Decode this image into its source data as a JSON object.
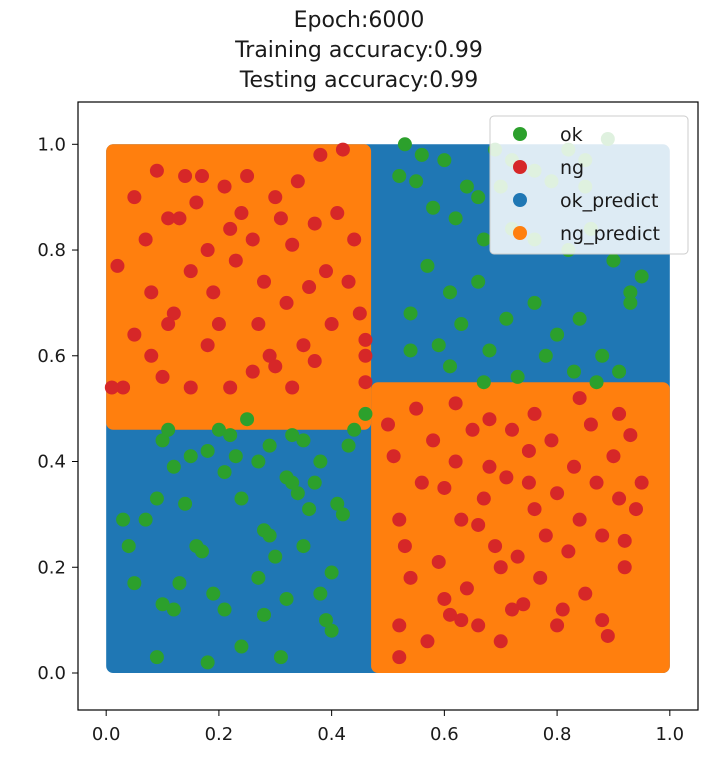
{
  "chart_data": {
    "type": "scatter",
    "title_lines": [
      "Epoch:6000",
      "Training accuracy:0.99",
      "Testing accuracy:0.99"
    ],
    "xlabel": "",
    "ylabel": "",
    "xlim": [
      -0.05,
      1.05
    ],
    "ylim": [
      -0.07,
      1.08
    ],
    "xticks": [
      0.0,
      0.2,
      0.4,
      0.6,
      0.8,
      1.0
    ],
    "yticks": [
      0.0,
      0.2,
      0.4,
      0.6,
      0.8,
      1.0
    ],
    "xtick_labels": [
      "0.0",
      "0.2",
      "0.4",
      "0.6",
      "0.8",
      "1.0"
    ],
    "ytick_labels": [
      "0.0",
      "0.2",
      "0.4",
      "0.6",
      "0.8",
      "1.0"
    ],
    "grid": false,
    "legend_position": "top-right",
    "regions": [
      {
        "name": "ok_predict",
        "color": "#1f77b4",
        "x": [
          0.0,
          1.0
        ],
        "y": [
          0.0,
          1.0
        ]
      },
      {
        "name": "ng_predict",
        "color": "#ff7f0e",
        "x": [
          0.0,
          0.47
        ],
        "y": [
          0.46,
          1.0
        ]
      },
      {
        "name": "ng_predict",
        "color": "#ff7f0e",
        "x": [
          0.47,
          1.0
        ],
        "y": [
          0.0,
          0.55
        ]
      }
    ],
    "series": [
      {
        "name": "ok",
        "color": "#2ca02c",
        "points": [
          [
            0.53,
            1.0
          ],
          [
            0.52,
            0.94
          ],
          [
            0.56,
            0.98
          ],
          [
            0.6,
            0.97
          ],
          [
            0.64,
            0.92
          ],
          [
            0.66,
            0.9
          ],
          [
            0.69,
            0.99
          ],
          [
            0.72,
            0.97
          ],
          [
            0.76,
            0.95
          ],
          [
            0.79,
            0.93
          ],
          [
            0.82,
            0.99
          ],
          [
            0.85,
            0.97
          ],
          [
            0.89,
            1.01
          ],
          [
            0.55,
            0.93
          ],
          [
            0.58,
            0.88
          ],
          [
            0.62,
            0.86
          ],
          [
            0.67,
            0.82
          ],
          [
            0.72,
            0.84
          ],
          [
            0.76,
            0.82
          ],
          [
            0.82,
            0.8
          ],
          [
            0.86,
            0.84
          ],
          [
            0.9,
            0.78
          ],
          [
            0.93,
            0.72
          ],
          [
            0.57,
            0.77
          ],
          [
            0.61,
            0.72
          ],
          [
            0.66,
            0.74
          ],
          [
            0.71,
            0.67
          ],
          [
            0.76,
            0.7
          ],
          [
            0.8,
            0.64
          ],
          [
            0.84,
            0.67
          ],
          [
            0.88,
            0.6
          ],
          [
            0.91,
            0.57
          ],
          [
            0.54,
            0.68
          ],
          [
            0.59,
            0.62
          ],
          [
            0.63,
            0.66
          ],
          [
            0.68,
            0.61
          ],
          [
            0.73,
            0.56
          ],
          [
            0.78,
            0.6
          ],
          [
            0.83,
            0.57
          ],
          [
            0.87,
            0.55
          ],
          [
            0.54,
            0.61
          ],
          [
            0.61,
            0.58
          ],
          [
            0.67,
            0.55
          ],
          [
            0.93,
            0.7
          ],
          [
            0.95,
            0.75
          ],
          [
            0.85,
            0.92
          ],
          [
            0.7,
            0.92
          ],
          [
            0.46,
            0.49
          ],
          [
            0.03,
            0.29
          ],
          [
            0.04,
            0.24
          ],
          [
            0.05,
            0.17
          ],
          [
            0.07,
            0.29
          ],
          [
            0.09,
            0.33
          ],
          [
            0.1,
            0.44
          ],
          [
            0.11,
            0.46
          ],
          [
            0.12,
            0.39
          ],
          [
            0.14,
            0.32
          ],
          [
            0.15,
            0.41
          ],
          [
            0.17,
            0.23
          ],
          [
            0.18,
            0.42
          ],
          [
            0.2,
            0.46
          ],
          [
            0.21,
            0.38
          ],
          [
            0.22,
            0.45
          ],
          [
            0.23,
            0.41
          ],
          [
            0.24,
            0.33
          ],
          [
            0.25,
            0.48
          ],
          [
            0.27,
            0.4
          ],
          [
            0.28,
            0.27
          ],
          [
            0.29,
            0.26
          ],
          [
            0.3,
            0.22
          ],
          [
            0.32,
            0.37
          ],
          [
            0.33,
            0.45
          ],
          [
            0.34,
            0.34
          ],
          [
            0.35,
            0.44
          ],
          [
            0.36,
            0.31
          ],
          [
            0.37,
            0.36
          ],
          [
            0.38,
            0.4
          ],
          [
            0.4,
            0.19
          ],
          [
            0.41,
            0.32
          ],
          [
            0.42,
            0.3
          ],
          [
            0.43,
            0.43
          ],
          [
            0.44,
            0.46
          ],
          [
            0.1,
            0.13
          ],
          [
            0.12,
            0.12
          ],
          [
            0.16,
            0.24
          ],
          [
            0.19,
            0.15
          ],
          [
            0.21,
            0.12
          ],
          [
            0.24,
            0.05
          ],
          [
            0.27,
            0.18
          ],
          [
            0.28,
            0.11
          ],
          [
            0.32,
            0.14
          ],
          [
            0.35,
            0.24
          ],
          [
            0.39,
            0.1
          ],
          [
            0.4,
            0.08
          ],
          [
            0.13,
            0.17
          ],
          [
            0.09,
            0.03
          ],
          [
            0.18,
            0.02
          ],
          [
            0.31,
            0.03
          ],
          [
            0.38,
            0.15
          ],
          [
            0.33,
            0.36
          ],
          [
            0.29,
            0.43
          ]
        ]
      },
      {
        "name": "ng",
        "color": "#d62728",
        "points": [
          [
            0.02,
            0.77
          ],
          [
            0.05,
            0.9
          ],
          [
            0.07,
            0.82
          ],
          [
            0.08,
            0.72
          ],
          [
            0.09,
            0.95
          ],
          [
            0.11,
            0.86
          ],
          [
            0.12,
            0.68
          ],
          [
            0.13,
            0.86
          ],
          [
            0.14,
            0.94
          ],
          [
            0.15,
            0.76
          ],
          [
            0.16,
            0.89
          ],
          [
            0.17,
            0.94
          ],
          [
            0.18,
            0.8
          ],
          [
            0.19,
            0.72
          ],
          [
            0.2,
            0.66
          ],
          [
            0.21,
            0.92
          ],
          [
            0.22,
            0.84
          ],
          [
            0.23,
            0.78
          ],
          [
            0.24,
            0.87
          ],
          [
            0.25,
            0.94
          ],
          [
            0.26,
            0.82
          ],
          [
            0.27,
            0.66
          ],
          [
            0.28,
            0.74
          ],
          [
            0.29,
            0.6
          ],
          [
            0.3,
            0.9
          ],
          [
            0.31,
            0.86
          ],
          [
            0.32,
            0.7
          ],
          [
            0.33,
            0.81
          ],
          [
            0.34,
            0.93
          ],
          [
            0.35,
            0.62
          ],
          [
            0.36,
            0.73
          ],
          [
            0.37,
            0.85
          ],
          [
            0.38,
            0.98
          ],
          [
            0.39,
            0.76
          ],
          [
            0.4,
            0.66
          ],
          [
            0.41,
            0.87
          ],
          [
            0.42,
            0.99
          ],
          [
            0.43,
            0.74
          ],
          [
            0.44,
            0.82
          ],
          [
            0.45,
            0.68
          ],
          [
            0.46,
            0.63
          ],
          [
            0.46,
            0.6
          ],
          [
            0.46,
            0.55
          ],
          [
            0.05,
            0.64
          ],
          [
            0.08,
            0.6
          ],
          [
            0.1,
            0.56
          ],
          [
            0.11,
            0.66
          ],
          [
            0.15,
            0.54
          ],
          [
            0.18,
            0.62
          ],
          [
            0.22,
            0.54
          ],
          [
            0.26,
            0.57
          ],
          [
            0.3,
            0.58
          ],
          [
            0.33,
            0.54
          ],
          [
            0.37,
            0.59
          ],
          [
            0.03,
            0.54
          ],
          [
            0.01,
            0.54
          ],
          [
            0.5,
            0.47
          ],
          [
            0.51,
            0.41
          ],
          [
            0.52,
            0.29
          ],
          [
            0.53,
            0.24
          ],
          [
            0.54,
            0.18
          ],
          [
            0.52,
            0.09
          ],
          [
            0.52,
            0.03
          ],
          [
            0.56,
            0.36
          ],
          [
            0.58,
            0.44
          ],
          [
            0.59,
            0.21
          ],
          [
            0.6,
            0.14
          ],
          [
            0.61,
            0.11
          ],
          [
            0.62,
            0.4
          ],
          [
            0.63,
            0.29
          ],
          [
            0.64,
            0.16
          ],
          [
            0.65,
            0.46
          ],
          [
            0.66,
            0.09
          ],
          [
            0.67,
            0.33
          ],
          [
            0.68,
            0.39
          ],
          [
            0.69,
            0.24
          ],
          [
            0.7,
            0.06
          ],
          [
            0.71,
            0.37
          ],
          [
            0.72,
            0.46
          ],
          [
            0.73,
            0.22
          ],
          [
            0.74,
            0.13
          ],
          [
            0.75,
            0.42
          ],
          [
            0.76,
            0.31
          ],
          [
            0.77,
            0.18
          ],
          [
            0.78,
            0.26
          ],
          [
            0.79,
            0.44
          ],
          [
            0.8,
            0.34
          ],
          [
            0.81,
            0.12
          ],
          [
            0.82,
            0.23
          ],
          [
            0.83,
            0.39
          ],
          [
            0.84,
            0.29
          ],
          [
            0.85,
            0.15
          ],
          [
            0.86,
            0.47
          ],
          [
            0.87,
            0.36
          ],
          [
            0.88,
            0.26
          ],
          [
            0.89,
            0.07
          ],
          [
            0.9,
            0.41
          ],
          [
            0.91,
            0.33
          ],
          [
            0.92,
            0.2
          ],
          [
            0.93,
            0.45
          ],
          [
            0.94,
            0.31
          ],
          [
            0.95,
            0.36
          ],
          [
            0.62,
            0.51
          ],
          [
            0.68,
            0.48
          ],
          [
            0.76,
            0.49
          ],
          [
            0.84,
            0.52
          ],
          [
            0.91,
            0.49
          ],
          [
            0.55,
            0.5
          ],
          [
            0.57,
            0.06
          ],
          [
            0.63,
            0.1
          ],
          [
            0.72,
            0.12
          ],
          [
            0.88,
            0.1
          ],
          [
            0.92,
            0.25
          ],
          [
            0.66,
            0.28
          ],
          [
            0.7,
            0.2
          ],
          [
            0.8,
            0.09
          ],
          [
            0.6,
            0.35
          ],
          [
            0.75,
            0.36
          ]
        ]
      }
    ],
    "legend": [
      {
        "label": "ok",
        "color": "#2ca02c"
      },
      {
        "label": "ng",
        "color": "#d62728"
      },
      {
        "label": "ok_predict",
        "color": "#1f77b4"
      },
      {
        "label": "ng_predict",
        "color": "#ff7f0e"
      }
    ]
  }
}
